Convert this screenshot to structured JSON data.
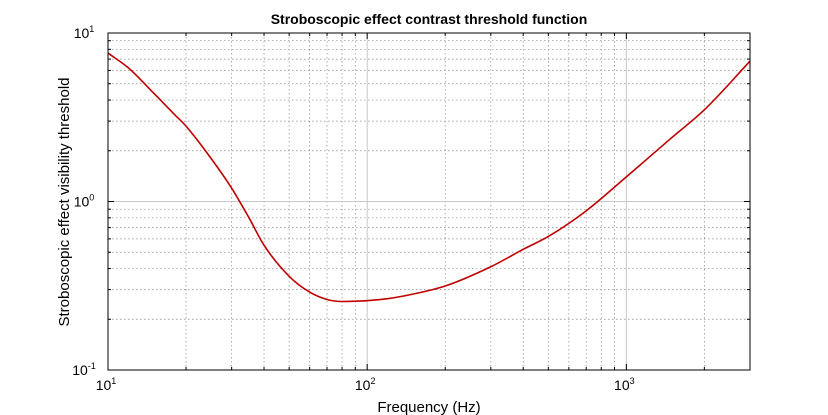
{
  "chart_data": {
    "type": "line",
    "title": "Stroboscopic effect contrast threshold function",
    "xlabel": "Frequency (Hz)",
    "ylabel": "Stroboscopic effect visibility threshold",
    "x_scale": "log",
    "y_scale": "log",
    "xlim": [
      10,
      3000
    ],
    "ylim": [
      0.1,
      10
    ],
    "grid": true,
    "x_ticks": [
      {
        "value": 10,
        "base": "10",
        "exp": "1"
      },
      {
        "value": 100,
        "base": "10",
        "exp": "2"
      },
      {
        "value": 1000,
        "base": "10",
        "exp": "3"
      }
    ],
    "y_ticks": [
      {
        "value": 0.1,
        "base": "10",
        "exp": "-1"
      },
      {
        "value": 1,
        "base": "10",
        "exp": "0"
      },
      {
        "value": 10,
        "base": "10",
        "exp": "1"
      }
    ],
    "line_color": "#c00000",
    "series": [
      {
        "x": [
          10,
          12,
          15,
          18,
          20,
          25,
          30,
          35,
          40,
          50,
          60,
          70,
          80,
          90,
          100,
          120,
          150,
          200,
          300,
          400,
          500,
          700,
          1000,
          1500,
          2000,
          3000
        ],
        "y": [
          7.6,
          6.2,
          4.4,
          3.3,
          2.8,
          1.8,
          1.2,
          0.8,
          0.55,
          0.36,
          0.29,
          0.262,
          0.255,
          0.256,
          0.258,
          0.265,
          0.282,
          0.315,
          0.41,
          0.52,
          0.62,
          0.88,
          1.4,
          2.4,
          3.5,
          6.8
        ]
      }
    ]
  }
}
